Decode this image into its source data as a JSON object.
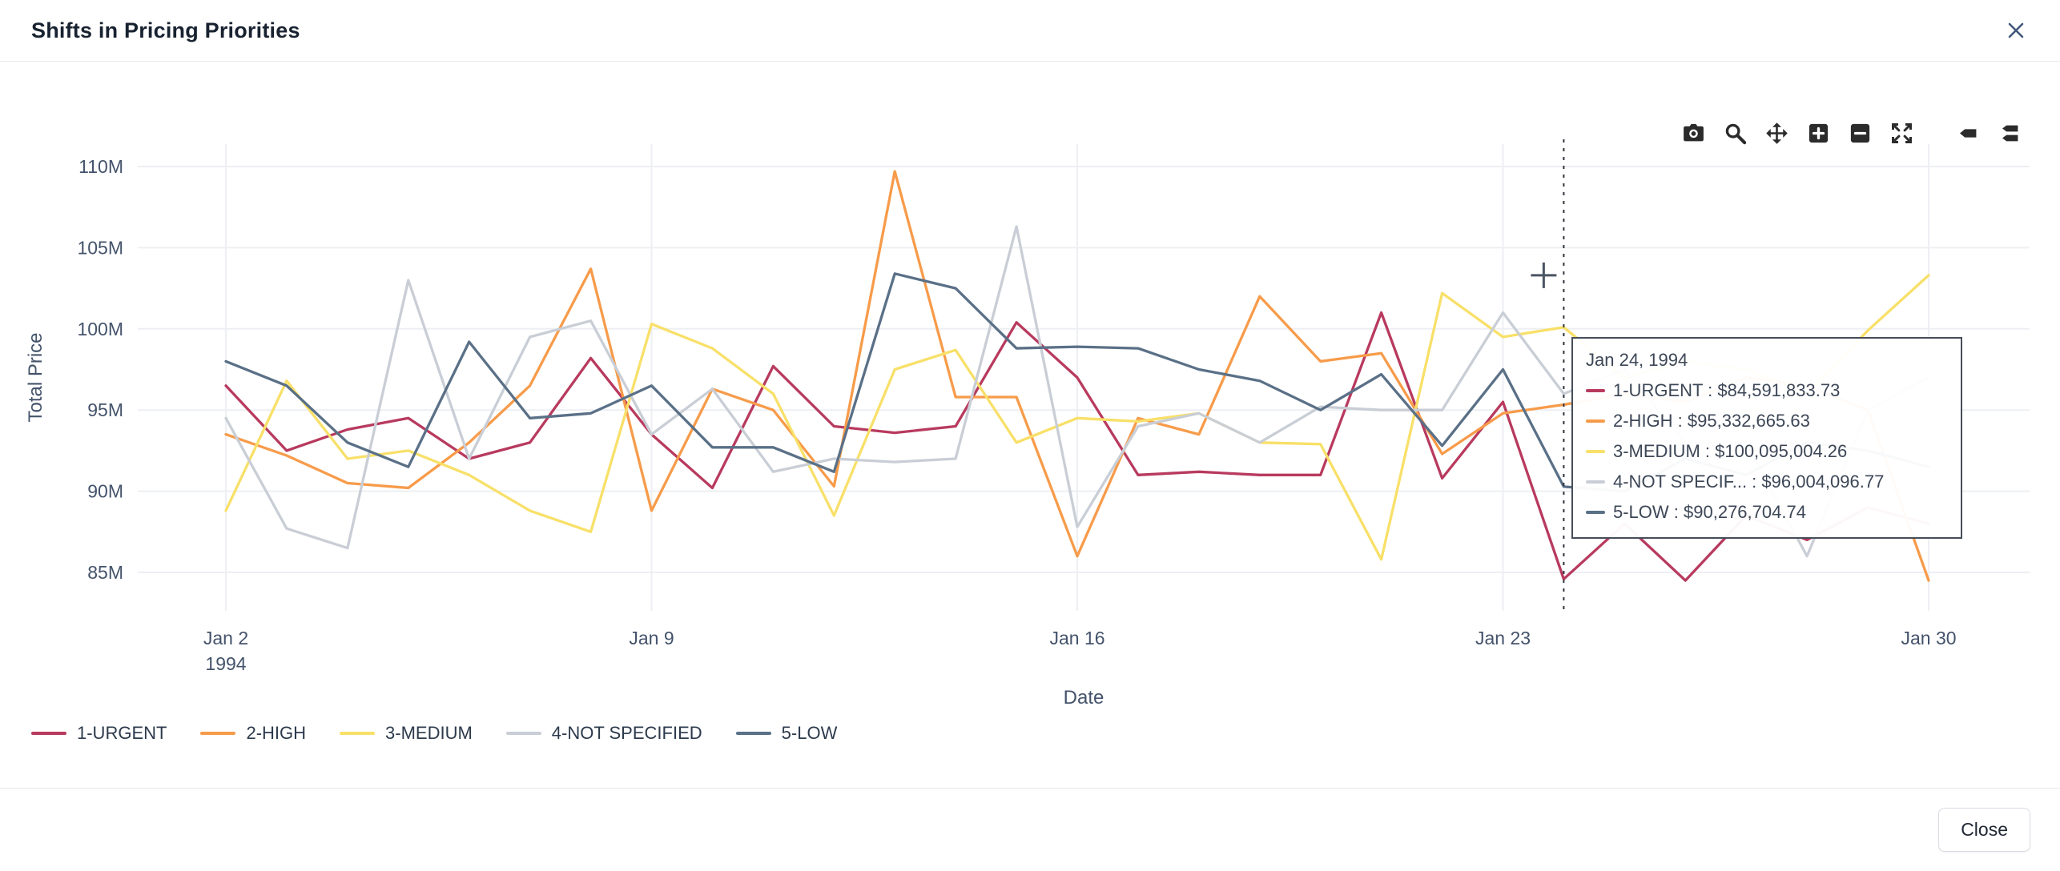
{
  "modal": {
    "title": "Shifts in Pricing Priorities",
    "close_button": "Close"
  },
  "modebar": {
    "buttons": [
      "camera",
      "zoom",
      "pan",
      "zoom-in",
      "zoom-out",
      "autoscale",
      "hover-closest",
      "hover-compare"
    ]
  },
  "chart_data": {
    "type": "line",
    "title": "Shifts in Pricing Priorities",
    "xlabel": "Date",
    "ylabel": "Total Price",
    "ylim": [
      82.6,
      111.4
    ],
    "y_unit": "millions USD",
    "grid": true,
    "legend_position": "bottom-left",
    "x_days": [
      2,
      3,
      4,
      5,
      6,
      7,
      8,
      9,
      10,
      11,
      12,
      13,
      14,
      15,
      16,
      17,
      18,
      19,
      20,
      21,
      22,
      23,
      24,
      25,
      26,
      27,
      28,
      29,
      30
    ],
    "x_month_year": "Jan 1994",
    "xticks": [
      {
        "day": 2,
        "label": "Jan 2",
        "sublabel": "1994"
      },
      {
        "day": 9,
        "label": "Jan 9"
      },
      {
        "day": 16,
        "label": "Jan 16"
      },
      {
        "day": 23,
        "label": "Jan 23"
      },
      {
        "day": 30,
        "label": "Jan 30"
      }
    ],
    "yticks": [
      {
        "value": 85,
        "label": "85M"
      },
      {
        "value": 90,
        "label": "90M"
      },
      {
        "value": 95,
        "label": "95M"
      },
      {
        "value": 100,
        "label": "100M"
      },
      {
        "value": 105,
        "label": "105M"
      },
      {
        "value": 110,
        "label": "110M"
      }
    ],
    "series": [
      {
        "name": "1-URGENT",
        "color": "#b83a5e",
        "values": [
          96.5,
          92.5,
          93.8,
          94.5,
          92.0,
          93.0,
          98.2,
          93.5,
          90.2,
          97.7,
          94.0,
          93.6,
          94.0,
          100.4,
          97.0,
          91.0,
          91.2,
          91.0,
          91.0,
          101.0,
          90.8,
          95.5,
          84.59,
          88.0,
          84.5,
          88.5,
          87.0,
          89.0,
          88.0
        ]
      },
      {
        "name": "2-HIGH",
        "color": "#f79b4a",
        "values": [
          93.5,
          92.2,
          90.5,
          90.2,
          93.0,
          96.5,
          103.7,
          88.8,
          96.3,
          95.0,
          90.3,
          109.7,
          95.8,
          95.8,
          86.0,
          94.5,
          93.5,
          102.0,
          98.0,
          98.5,
          92.3,
          94.8,
          95.33,
          96.0,
          95.5,
          97.0,
          96.5,
          95.0,
          84.5
        ]
      },
      {
        "name": "3-MEDIUM",
        "color": "#f8e069",
        "values": [
          88.8,
          96.8,
          92.0,
          92.5,
          91.0,
          88.8,
          87.5,
          100.3,
          98.8,
          96.0,
          88.5,
          97.5,
          98.7,
          93.0,
          94.5,
          94.3,
          94.8,
          93.0,
          92.9,
          85.8,
          102.2,
          99.5,
          100.1,
          97.0,
          98.0,
          97.5,
          96.0,
          99.9,
          103.3
        ]
      },
      {
        "name": "4-NOT SPECIFIED",
        "color": "#c9ced6",
        "values": [
          94.5,
          87.7,
          86.5,
          103.0,
          92.0,
          99.5,
          100.5,
          93.5,
          96.3,
          91.2,
          92.0,
          91.8,
          92.0,
          106.3,
          87.8,
          94.0,
          94.8,
          93.0,
          95.2,
          95.0,
          95.0,
          101.0,
          96.0,
          97.5,
          93.0,
          93.0,
          86.0,
          95.0,
          97.0
        ]
      },
      {
        "name": "5-LOW",
        "color": "#5a7087",
        "values": [
          98.0,
          96.5,
          93.0,
          91.5,
          99.2,
          94.5,
          94.8,
          96.5,
          92.7,
          92.7,
          91.2,
          103.4,
          102.5,
          98.8,
          98.9,
          98.8,
          97.5,
          96.8,
          95.0,
          97.2,
          92.8,
          97.5,
          90.28,
          90.0,
          92.0,
          91.0,
          93.0,
          92.5,
          91.5
        ]
      }
    ],
    "cursor": {
      "day": 23.67,
      "value": 103.3
    },
    "hover": {
      "day": 24,
      "date_label": "Jan 24, 1994",
      "rows": [
        {
          "series": "1-URGENT",
          "color": "#b83a5e",
          "text": "1-URGENT : $84,591,833.73"
        },
        {
          "series": "2-HIGH",
          "color": "#f79b4a",
          "text": "2-HIGH : $95,332,665.63"
        },
        {
          "series": "3-MEDIUM",
          "color": "#f8e069",
          "text": "3-MEDIUM : $100,095,004.26"
        },
        {
          "series": "4-NOT SPECIFIED",
          "color": "#c9ced6",
          "text": "4-NOT SPECIF... : $96,004,096.77"
        },
        {
          "series": "5-LOW",
          "color": "#5a7087",
          "text": "5-LOW : $90,276,704.74"
        }
      ]
    }
  }
}
